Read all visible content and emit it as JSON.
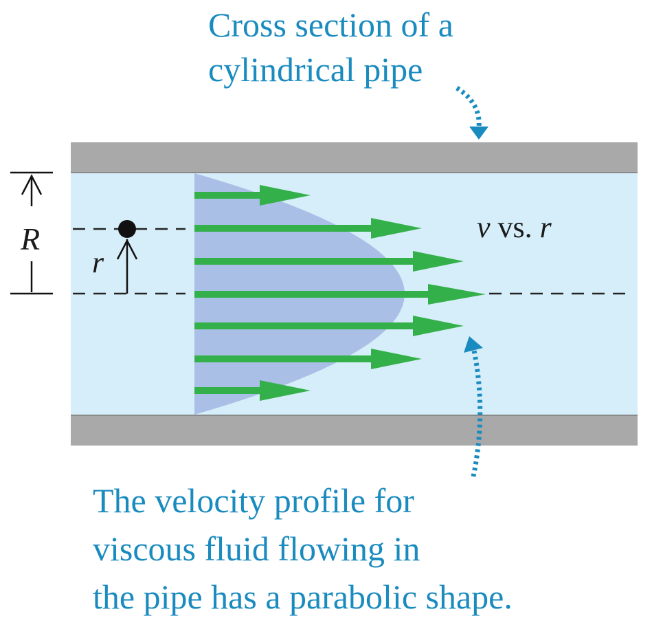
{
  "top_caption": {
    "line1": "Cross section of a",
    "line2": "cylindrical pipe"
  },
  "bottom_caption": {
    "line1": "The velocity profile for",
    "line2": "viscous fluid flowing in",
    "line3": "the pipe has a parabolic shape."
  },
  "labels": {
    "radius": "R",
    "small_radius": "r",
    "v_symbol": "v",
    "vs_text": " vs. ",
    "r_symbol": "r"
  },
  "colors": {
    "caption": "#1a8bbf",
    "pipe_wall": "#a9a9a9",
    "fluid": "#d6eef9",
    "profile": "#aabfe6",
    "arrow": "#34b04a"
  }
}
